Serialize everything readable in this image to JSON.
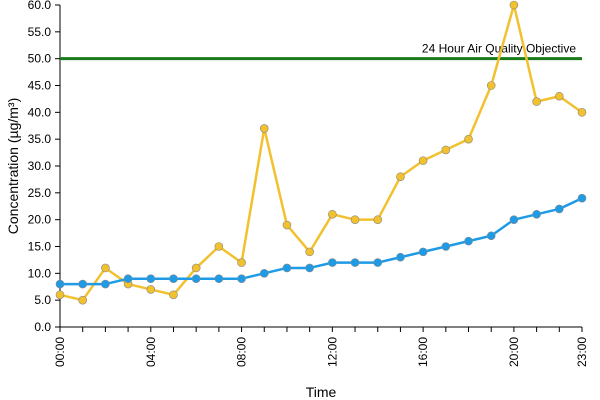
{
  "chart_data": {
    "type": "line",
    "title": "",
    "xlabel": "Time",
    "ylabel": "Concentration (µg/m³)",
    "x": [
      "00:00",
      "01:00",
      "02:00",
      "03:00",
      "04:00",
      "05:00",
      "06:00",
      "07:00",
      "08:00",
      "09:00",
      "10:00",
      "11:00",
      "12:00",
      "13:00",
      "14:00",
      "15:00",
      "16:00",
      "17:00",
      "18:00",
      "19:00",
      "20:00",
      "21:00",
      "22:00",
      "23:00"
    ],
    "x_tick_labels": [
      "00:00",
      "04:00",
      "08:00",
      "12:00",
      "16:00",
      "20:00",
      "23:00"
    ],
    "y_tick_labels": [
      "0.0",
      "5.0",
      "10.0",
      "15.0",
      "20.0",
      "25.0",
      "30.0",
      "35.0",
      "40.0",
      "45.0",
      "50.0",
      "55.0",
      "60.0"
    ],
    "ylim": [
      0,
      60
    ],
    "grid": false,
    "series": [
      {
        "color": "#f2c12e",
        "values": [
          6,
          5,
          11,
          8,
          7,
          6,
          11,
          15,
          12,
          37,
          19,
          14,
          21,
          20,
          20,
          28,
          31,
          33,
          35,
          45,
          60,
          42,
          43,
          40
        ]
      },
      {
        "color": "#1e9be6",
        "values": [
          8,
          8,
          8,
          9,
          9,
          9,
          9,
          9,
          9,
          10,
          11,
          11,
          12,
          12,
          12,
          13,
          14,
          15,
          16,
          17,
          20,
          21,
          22,
          24
        ]
      }
    ],
    "reference_line": {
      "value": 50,
      "label": "24 Hour Air Quality Objective",
      "color": "#1a7a1a"
    }
  }
}
